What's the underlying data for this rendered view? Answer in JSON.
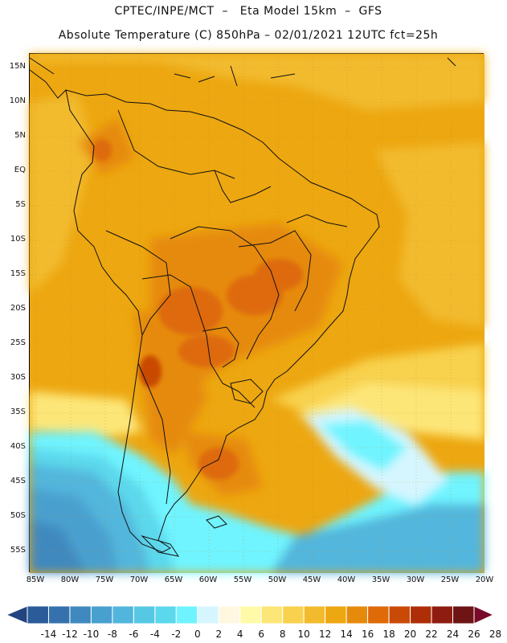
{
  "header": {
    "line1": "CPTEC/INPE/MCT  –   Eta Model 15km  –  GFS",
    "line2": "Absolute Temperature (C) 850hPa – 02/01/2021 12UTC fct=25h"
  },
  "map": {
    "lat_labels": [
      "15N",
      "10N",
      "5N",
      "EQ",
      "5S",
      "10S",
      "15S",
      "20S",
      "25S",
      "30S",
      "35S",
      "40S",
      "45S",
      "50S",
      "55S"
    ],
    "lon_labels": [
      "85W",
      "80W",
      "75W",
      "70W",
      "65W",
      "60W",
      "55W",
      "50W",
      "45W",
      "40W",
      "35W",
      "30W",
      "25W",
      "20W"
    ],
    "lon_extent": [
      -86,
      -19.5
    ],
    "lat_extent": [
      17,
      -58
    ]
  },
  "colorbar": {
    "labels": [
      "-14",
      "-12",
      "-10",
      "-8",
      "-6",
      "-4",
      "-2",
      "0",
      "2",
      "4",
      "6",
      "8",
      "10",
      "12",
      "14",
      "16",
      "18",
      "20",
      "22",
      "24",
      "26",
      "28"
    ],
    "colors": [
      "#22447f",
      "#2b5b99",
      "#3572ad",
      "#3f89bf",
      "#48a0cf",
      "#52b6dc",
      "#56c8e4",
      "#5cd8ec",
      "#6ff4ff",
      "#d6f6ff",
      "#fff7e0",
      "#fffaa8",
      "#fde678",
      "#f8d24e",
      "#f2bb2e",
      "#eda710",
      "#e68a0c",
      "#de6a08",
      "#c94a06",
      "#ae2e07",
      "#8f1c10",
      "#6e1414",
      "#7a0a2a"
    ]
  }
}
